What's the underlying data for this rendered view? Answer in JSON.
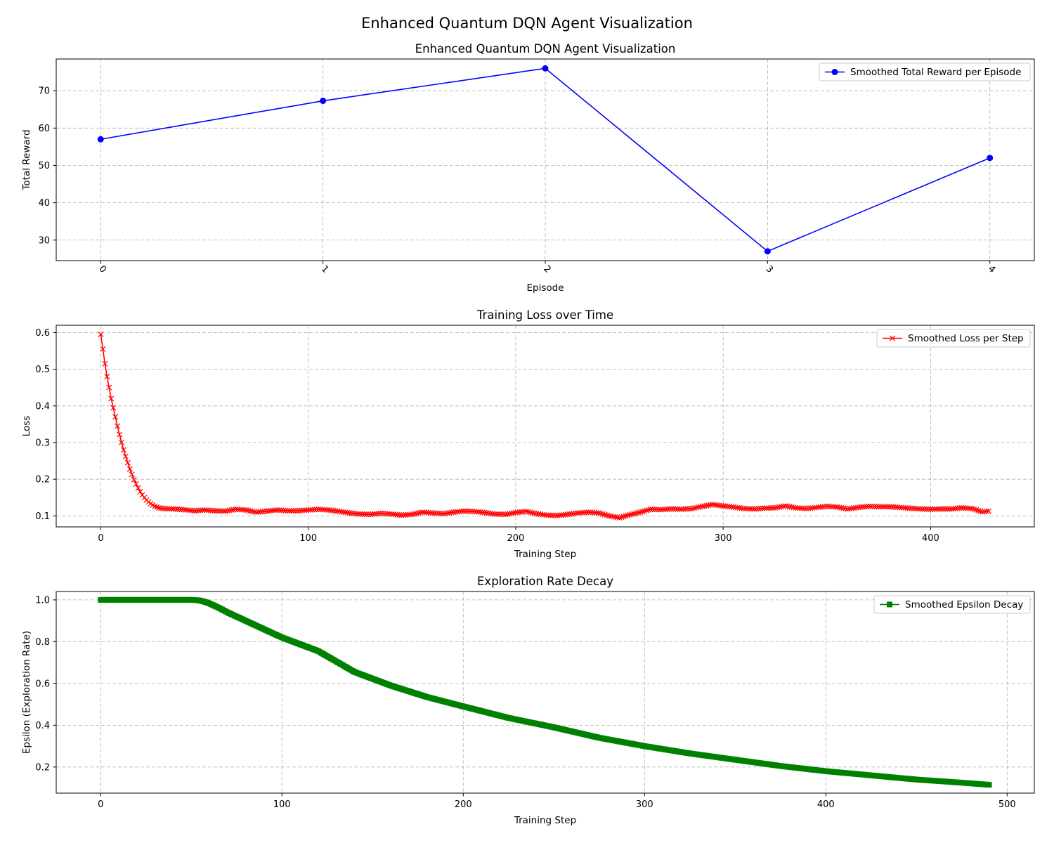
{
  "figure_title": "Enhanced Quantum DQN Agent Visualization",
  "colors": {
    "reward": "#0000ff",
    "loss": "#ff0000",
    "epsilon": "#008000",
    "grid": "#b0b0b0"
  },
  "chart_data": [
    {
      "type": "line",
      "title": "Enhanced Quantum DQN Agent Visualization",
      "xlabel": "Episode",
      "ylabel": "Total Reward",
      "x": [
        0,
        1,
        2,
        3,
        4
      ],
      "series": [
        {
          "name": "Smoothed Total Reward per Episode",
          "marker": "circle",
          "color": "#0000ff",
          "values": [
            57,
            67.3,
            76,
            27,
            52
          ]
        }
      ],
      "xlim": [
        -0.2,
        4.2
      ],
      "ylim": [
        24.5,
        78.5
      ],
      "xticks": [
        0,
        1,
        2,
        3,
        4
      ],
      "xtick_labels": [
        "0",
        "1",
        "2",
        "3",
        "4"
      ],
      "xtick_rotation": 45,
      "yticks": [
        30,
        40,
        50,
        60,
        70
      ],
      "grid": true,
      "legend": "upper right"
    },
    {
      "type": "line",
      "title": "Training Loss over Time",
      "xlabel": "Training Step",
      "ylabel": "Loss",
      "series": [
        {
          "name": "Smoothed Loss per Step",
          "marker": "x",
          "color": "#ff0000",
          "x": [
            0,
            1,
            2,
            3,
            4,
            5,
            6,
            7,
            8,
            9,
            10,
            11,
            12,
            13,
            14,
            15,
            16,
            17,
            18,
            19,
            20,
            22,
            24,
            26,
            28,
            30,
            35,
            40,
            45,
            50,
            55,
            60,
            65,
            70,
            75,
            80,
            85,
            90,
            95,
            100,
            105,
            110,
            115,
            120,
            125,
            130,
            135,
            140,
            145,
            150,
            155,
            160,
            165,
            170,
            175,
            180,
            185,
            190,
            195,
            200,
            205,
            210,
            215,
            220,
            225,
            230,
            235,
            240,
            245,
            250,
            255,
            260,
            265,
            270,
            275,
            280,
            285,
            290,
            295,
            300,
            305,
            310,
            315,
            320,
            325,
            330,
            335,
            340,
            345,
            350,
            355,
            360,
            365,
            370,
            375,
            380,
            385,
            390,
            395,
            400,
            405,
            410,
            415,
            420,
            425,
            428
          ],
          "values": [
            0.595,
            0.555,
            0.515,
            0.48,
            0.45,
            0.42,
            0.395,
            0.37,
            0.345,
            0.322,
            0.3,
            0.28,
            0.262,
            0.245,
            0.228,
            0.213,
            0.199,
            0.187,
            0.176,
            0.166,
            0.157,
            0.143,
            0.133,
            0.126,
            0.122,
            0.12,
            0.119,
            0.117,
            0.114,
            0.116,
            0.114,
            0.113,
            0.118,
            0.116,
            0.11,
            0.113,
            0.116,
            0.114,
            0.114,
            0.116,
            0.118,
            0.116,
            0.112,
            0.108,
            0.105,
            0.104,
            0.107,
            0.105,
            0.102,
            0.104,
            0.11,
            0.108,
            0.106,
            0.11,
            0.113,
            0.112,
            0.109,
            0.105,
            0.104,
            0.109,
            0.112,
            0.106,
            0.102,
            0.101,
            0.104,
            0.108,
            0.11,
            0.108,
            0.1,
            0.095,
            0.103,
            0.11,
            0.118,
            0.117,
            0.119,
            0.118,
            0.12,
            0.126,
            0.131,
            0.127,
            0.124,
            0.12,
            0.119,
            0.121,
            0.122,
            0.127,
            0.122,
            0.12,
            0.123,
            0.126,
            0.124,
            0.119,
            0.123,
            0.126,
            0.125,
            0.125,
            0.123,
            0.121,
            0.119,
            0.118,
            0.119,
            0.119,
            0.122,
            0.12,
            0.111,
            0.113
          ]
        }
      ],
      "xlim": [
        -21.5,
        450
      ],
      "ylim": [
        0.07,
        0.62
      ],
      "xticks": [
        0,
        100,
        200,
        300,
        400
      ],
      "yticks": [
        0.1,
        0.2,
        0.3,
        0.4,
        0.5,
        0.6
      ],
      "grid": true,
      "legend": "upper right"
    },
    {
      "type": "line",
      "title": "Exploration Rate Decay",
      "xlabel": "Training Step",
      "ylabel": "Epsilon (Exploration Rate)",
      "series": [
        {
          "name": "Smoothed Epsilon Decay",
          "marker": "square",
          "color": "#008000",
          "x": [
            0,
            10,
            20,
            30,
            40,
            50,
            54,
            57,
            60,
            65,
            70,
            80,
            90,
            100,
            120,
            140,
            160,
            180,
            200,
            225,
            250,
            275,
            300,
            325,
            350,
            375,
            400,
            425,
            450,
            475,
            490
          ],
          "values": [
            1.0,
            1.0,
            1.0,
            1.0,
            1.0,
            1.0,
            0.998,
            0.992,
            0.983,
            0.963,
            0.94,
            0.9,
            0.86,
            0.82,
            0.755,
            0.655,
            0.59,
            0.535,
            0.49,
            0.435,
            0.39,
            0.34,
            0.3,
            0.265,
            0.235,
            0.205,
            0.18,
            0.16,
            0.14,
            0.125,
            0.115
          ]
        }
      ],
      "xlim": [
        -24.5,
        515
      ],
      "ylim": [
        0.075,
        1.04
      ],
      "xticks": [
        0,
        100,
        200,
        300,
        400,
        500
      ],
      "yticks": [
        0.2,
        0.4,
        0.6,
        0.8,
        1.0
      ],
      "ytick_labels": [
        "0.2",
        "0.4",
        "0.6",
        "0.8",
        "1.0"
      ],
      "grid": true,
      "legend": "upper right"
    }
  ]
}
